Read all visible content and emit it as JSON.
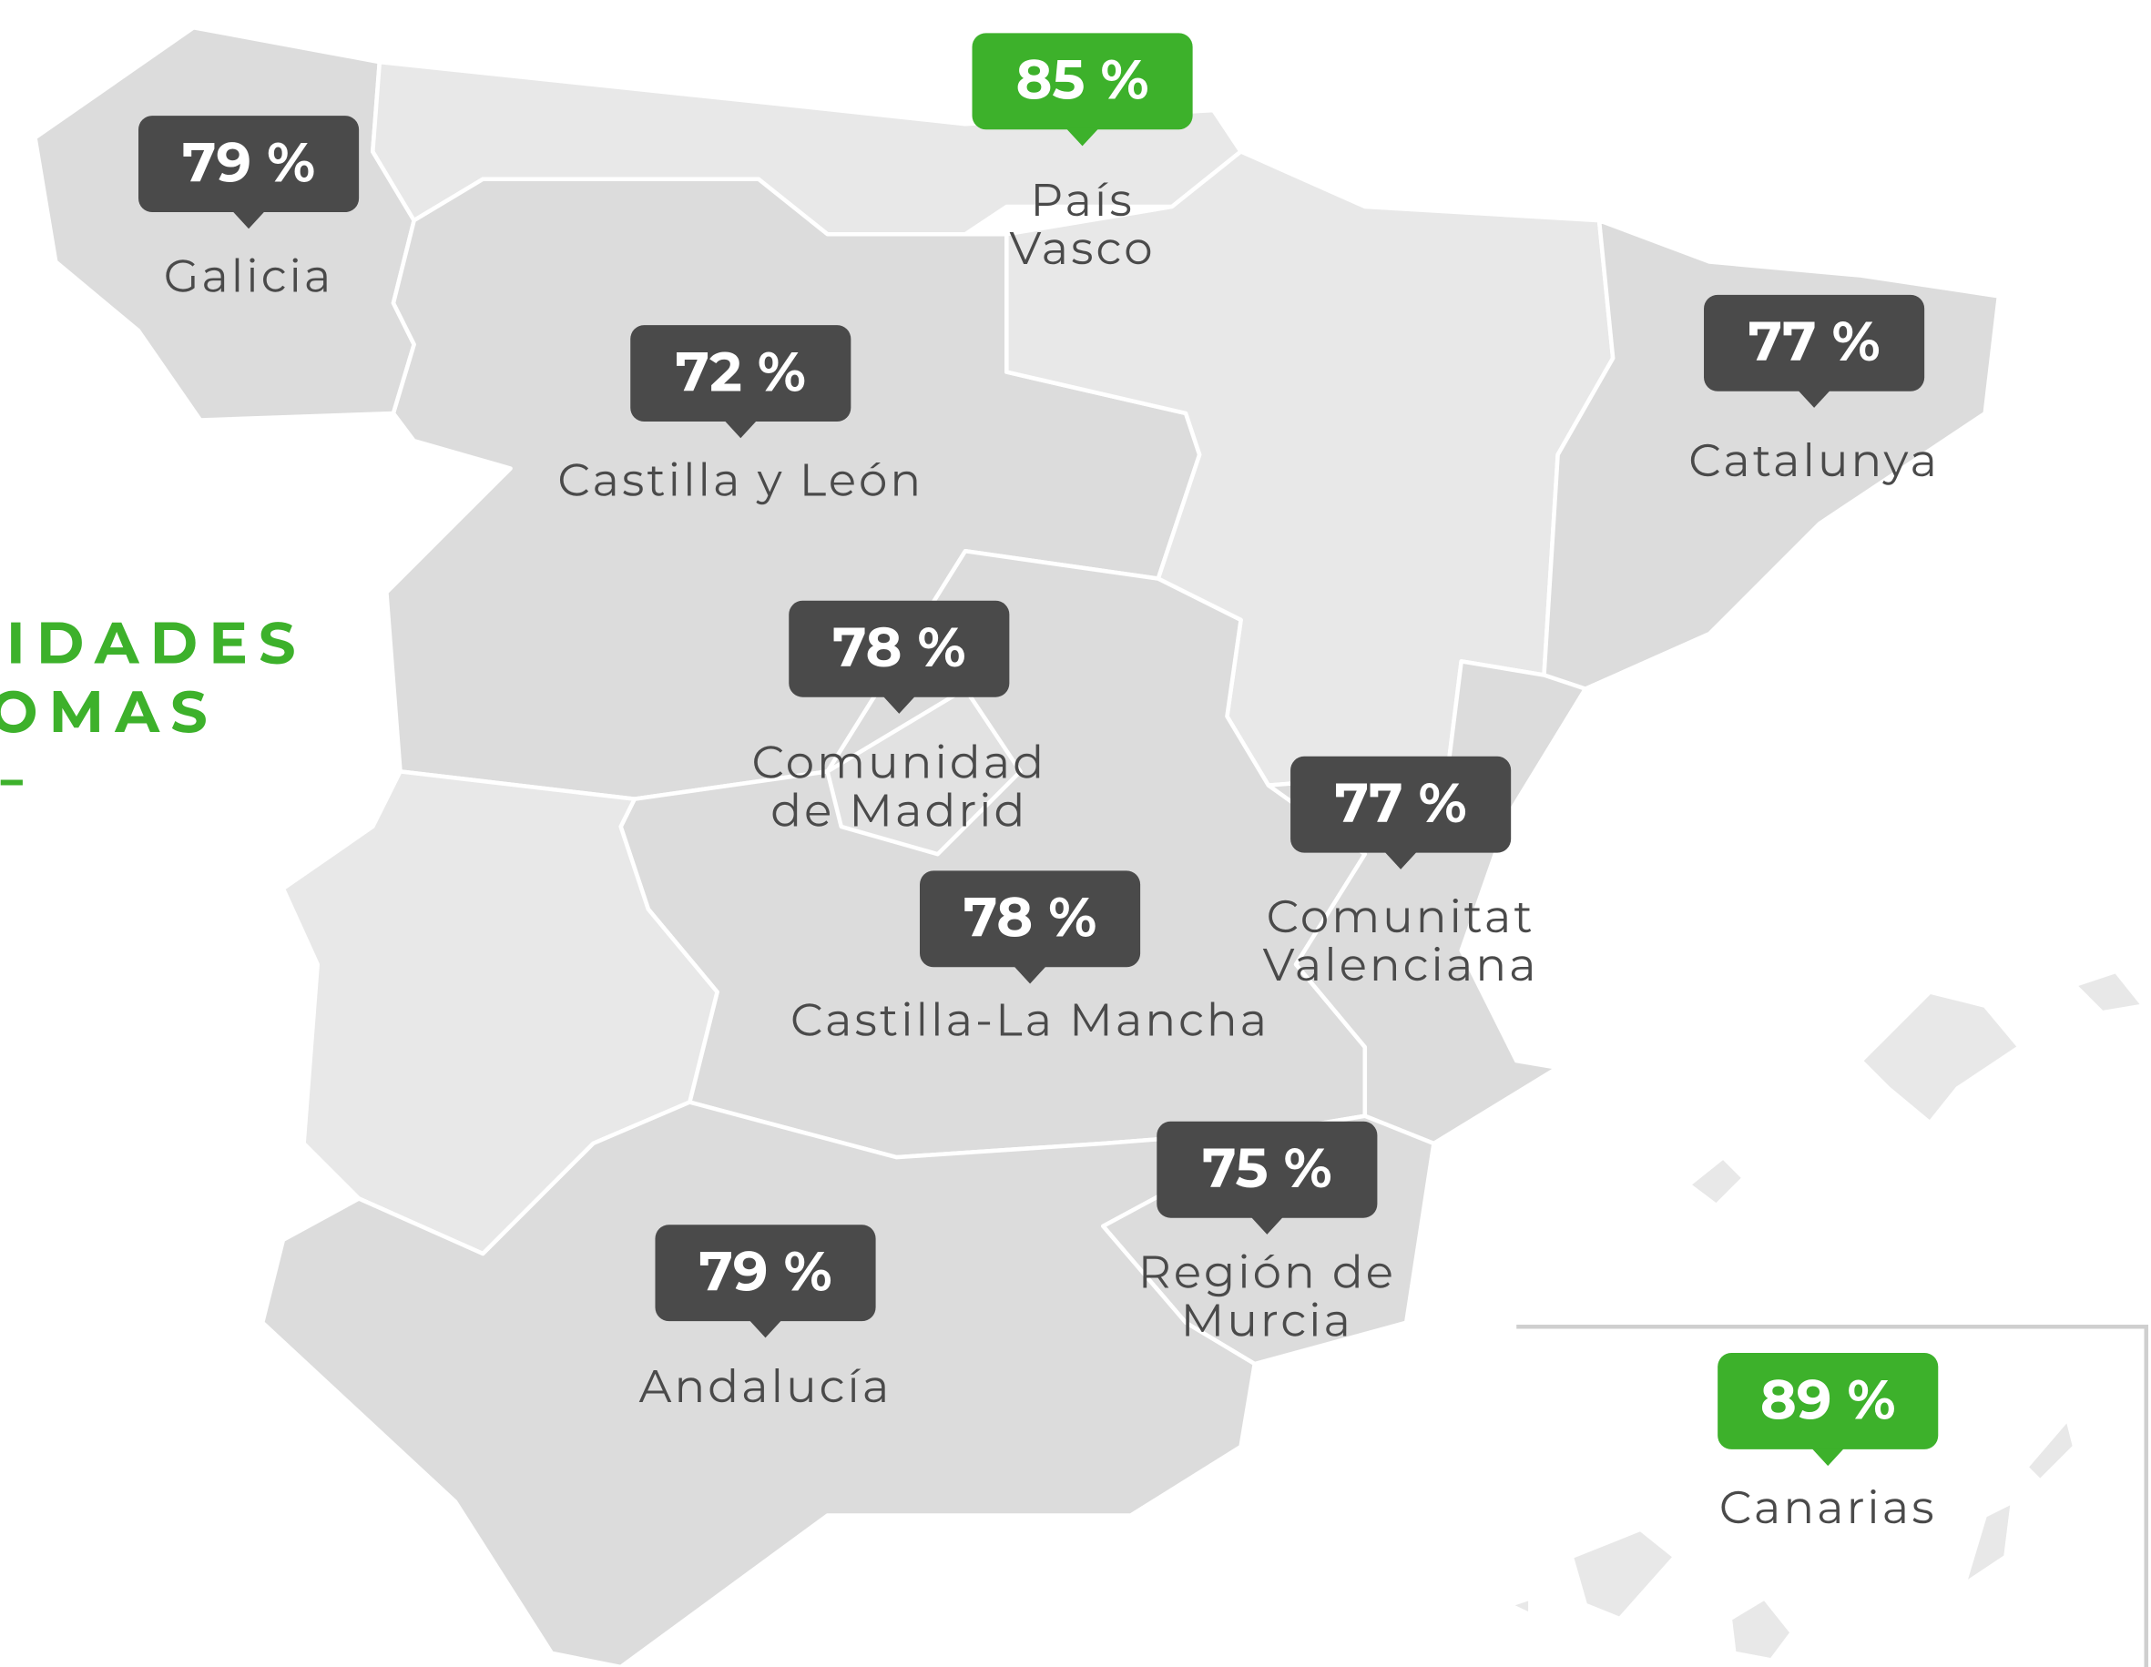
{
  "title": {
    "lines": [
      "COMUNIDADES",
      "AUTÓNOMAS"
    ],
    "color": "#3db12b"
  },
  "regions": [
    {
      "name_lines": [
        "Galicia"
      ],
      "label": "79 %",
      "color": "#4a4a4a"
    },
    {
      "name_lines": [
        "País",
        "Vasco"
      ],
      "label": "85 %",
      "color": "#3db12b"
    },
    {
      "name_lines": [
        "Castilla y León"
      ],
      "label": "72 %",
      "color": "#4a4a4a"
    },
    {
      "name_lines": [
        "Catalunya"
      ],
      "label": "77 %",
      "color": "#4a4a4a"
    },
    {
      "name_lines": [
        "Comunidad",
        "de Madrid"
      ],
      "label": "78 %",
      "color": "#4a4a4a"
    },
    {
      "name_lines": [
        "Comunitat",
        "Valenciana"
      ],
      "label": "77 %",
      "color": "#4a4a4a"
    },
    {
      "name_lines": [
        "Castilla-La Mancha"
      ],
      "label": "78 %",
      "color": "#4a4a4a"
    },
    {
      "name_lines": [
        "Región de",
        "Murcia"
      ],
      "label": "75 %",
      "color": "#4a4a4a"
    },
    {
      "name_lines": [
        "Andalucía"
      ],
      "label": "79 %",
      "color": "#4a4a4a"
    },
    {
      "name_lines": [
        "Canarias"
      ],
      "label": "89 %",
      "color": "#3db12b"
    }
  ]
}
